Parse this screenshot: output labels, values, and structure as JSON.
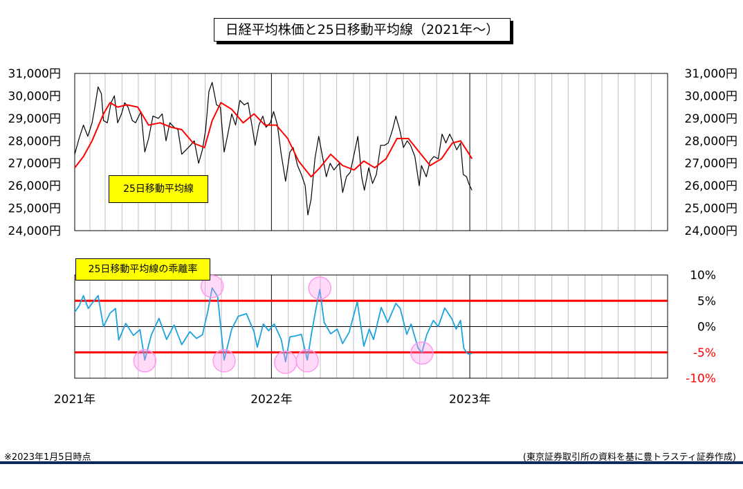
{
  "title": "日経平均株価と25日移動平均線（2021年～）",
  "labels": {
    "ma_tag": "25日移動平均線",
    "deviation_tag": "25日移動平均線の乖離率"
  },
  "footer": {
    "note": "※2023年1月5日時点",
    "source": "(東京証券取引所の資料を基に豊トラスティ証券作成)"
  },
  "colors": {
    "price_line": "#000000",
    "ma_line": "#ff0000",
    "deviation_line": "#1aa3e0",
    "threshold_line": "#ff0000",
    "label_fill": "#ffff00",
    "highlight_circle": "#ff99ee",
    "footer_rule": "#0d2a5e"
  },
  "chart_data": [
    {
      "type": "line",
      "yticks": [
        "31,000円",
        "30,000円",
        "29,000円",
        "28,000円",
        "27,000円",
        "26,000円",
        "25,000円",
        "24,000円"
      ],
      "ylim": [
        24000,
        31000
      ],
      "x_range": [
        "2021-01-04",
        "2023-12-31"
      ],
      "xlabels": [
        "2021年",
        "2022年",
        "2023年"
      ],
      "grid": "vertical",
      "series": [
        {
          "name": "",
          "kind": "daily_price",
          "points": [
            [
              "2021-01-04",
              27400
            ],
            [
              "2021-01-12",
              28100
            ],
            [
              "2021-01-20",
              28700
            ],
            [
              "2021-01-28",
              28200
            ],
            [
              "2021-02-05",
              28800
            ],
            [
              "2021-02-10",
              29500
            ],
            [
              "2021-02-16",
              30400
            ],
            [
              "2021-02-22",
              30100
            ],
            [
              "2021-02-26",
              28900
            ],
            [
              "2021-03-05",
              28800
            ],
            [
              "2021-03-12",
              29700
            ],
            [
              "2021-03-18",
              30000
            ],
            [
              "2021-03-24",
              28800
            ],
            [
              "2021-03-31",
              29200
            ],
            [
              "2021-04-06",
              29700
            ],
            [
              "2021-04-12",
              29500
            ],
            [
              "2021-04-20",
              28900
            ],
            [
              "2021-04-26",
              28800
            ],
            [
              "2021-05-06",
              29300
            ],
            [
              "2021-05-13",
              27500
            ],
            [
              "2021-05-20",
              28100
            ],
            [
              "2021-05-28",
              29100
            ],
            [
              "2021-06-07",
              29000
            ],
            [
              "2021-06-14",
              29200
            ],
            [
              "2021-06-21",
              28000
            ],
            [
              "2021-06-28",
              28800
            ],
            [
              "2021-07-06",
              28600
            ],
            [
              "2021-07-13",
              28500
            ],
            [
              "2021-07-20",
              27400
            ],
            [
              "2021-07-28",
              27600
            ],
            [
              "2021-08-05",
              27800
            ],
            [
              "2021-08-12",
              28000
            ],
            [
              "2021-08-20",
              27000
            ],
            [
              "2021-08-27",
              27600
            ],
            [
              "2021-09-02",
              28500
            ],
            [
              "2021-09-08",
              30200
            ],
            [
              "2021-09-14",
              30600
            ],
            [
              "2021-09-22",
              29600
            ],
            [
              "2021-09-29",
              29500
            ],
            [
              "2021-10-06",
              27500
            ],
            [
              "2021-10-12",
              28200
            ],
            [
              "2021-10-20",
              29200
            ],
            [
              "2021-10-27",
              28700
            ],
            [
              "2021-11-04",
              29800
            ],
            [
              "2021-11-12",
              29600
            ],
            [
              "2021-11-19",
              29700
            ],
            [
              "2021-11-26",
              28700
            ],
            [
              "2021-12-02",
              27800
            ],
            [
              "2021-12-09",
              28700
            ],
            [
              "2021-12-16",
              29100
            ],
            [
              "2021-12-22",
              28600
            ],
            [
              "2021-12-30",
              28800
            ],
            [
              "2022-01-05",
              29300
            ],
            [
              "2022-01-12",
              28700
            ],
            [
              "2022-01-19",
              27400
            ],
            [
              "2022-01-27",
              26200
            ],
            [
              "2022-02-04",
              27500
            ],
            [
              "2022-02-10",
              27700
            ],
            [
              "2022-02-18",
              26900
            ],
            [
              "2022-02-25",
              26500
            ],
            [
              "2022-03-04",
              26000
            ],
            [
              "2022-03-09",
              24700
            ],
            [
              "2022-03-15",
              25400
            ],
            [
              "2022-03-22",
              27200
            ],
            [
              "2022-03-29",
              28200
            ],
            [
              "2022-04-05",
              27300
            ],
            [
              "2022-04-12",
              26400
            ],
            [
              "2022-04-19",
              27000
            ],
            [
              "2022-04-26",
              26700
            ],
            [
              "2022-05-06",
              27000
            ],
            [
              "2022-05-12",
              25700
            ],
            [
              "2022-05-19",
              26400
            ],
            [
              "2022-05-26",
              26600
            ],
            [
              "2022-06-02",
              27400
            ],
            [
              "2022-06-09",
              28200
            ],
            [
              "2022-06-16",
              26400
            ],
            [
              "2022-06-21",
              25800
            ],
            [
              "2022-06-29",
              26800
            ],
            [
              "2022-07-06",
              26100
            ],
            [
              "2022-07-13",
              26500
            ],
            [
              "2022-07-21",
              27800
            ],
            [
              "2022-07-28",
              27800
            ],
            [
              "2022-08-04",
              27900
            ],
            [
              "2022-08-12",
              28500
            ],
            [
              "2022-08-18",
              29100
            ],
            [
              "2022-08-25",
              28500
            ],
            [
              "2022-09-01",
              27700
            ],
            [
              "2022-09-08",
              28000
            ],
            [
              "2022-09-14",
              27800
            ],
            [
              "2022-09-22",
              27300
            ],
            [
              "2022-09-30",
              26000
            ],
            [
              "2022-10-04",
              26900
            ],
            [
              "2022-10-13",
              26400
            ],
            [
              "2022-10-20",
              27100
            ],
            [
              "2022-10-27",
              27300
            ],
            [
              "2022-11-04",
              27200
            ],
            [
              "2022-11-11",
              28300
            ],
            [
              "2022-11-18",
              27900
            ],
            [
              "2022-11-25",
              28300
            ],
            [
              "2022-12-01",
              28000
            ],
            [
              "2022-12-08",
              27600
            ],
            [
              "2022-12-15",
              27900
            ],
            [
              "2022-12-20",
              26500
            ],
            [
              "2022-12-26",
              26400
            ],
            [
              "2022-12-30",
              26100
            ],
            [
              "2023-01-05",
              25800
            ]
          ]
        },
        {
          "name": "25日移動平均線",
          "kind": "moving_average",
          "points": [
            [
              "2021-01-04",
              26800
            ],
            [
              "2021-01-20",
              27300
            ],
            [
              "2021-02-05",
              28000
            ],
            [
              "2021-02-26",
              29200
            ],
            [
              "2021-03-10",
              29700
            ],
            [
              "2021-03-24",
              29500
            ],
            [
              "2021-04-10",
              29600
            ],
            [
              "2021-04-30",
              29500
            ],
            [
              "2021-05-20",
              28700
            ],
            [
              "2021-06-10",
              28800
            ],
            [
              "2021-07-01",
              28600
            ],
            [
              "2021-07-20",
              28500
            ],
            [
              "2021-08-10",
              27900
            ],
            [
              "2021-08-31",
              27700
            ],
            [
              "2021-09-14",
              28900
            ],
            [
              "2021-09-30",
              29700
            ],
            [
              "2021-10-20",
              29400
            ],
            [
              "2021-11-10",
              28800
            ],
            [
              "2021-11-30",
              29200
            ],
            [
              "2021-12-20",
              28700
            ],
            [
              "2022-01-10",
              28700
            ],
            [
              "2022-01-31",
              28100
            ],
            [
              "2022-02-20",
              27100
            ],
            [
              "2022-03-15",
              26400
            ],
            [
              "2022-03-31",
              26800
            ],
            [
              "2022-04-20",
              27400
            ],
            [
              "2022-05-12",
              26900
            ],
            [
              "2022-06-02",
              26700
            ],
            [
              "2022-06-20",
              27100
            ],
            [
              "2022-07-10",
              26800
            ],
            [
              "2022-07-31",
              27200
            ],
            [
              "2022-08-20",
              28100
            ],
            [
              "2022-09-10",
              28100
            ],
            [
              "2022-09-30",
              27500
            ],
            [
              "2022-10-20",
              26900
            ],
            [
              "2022-11-10",
              27200
            ],
            [
              "2022-11-30",
              27900
            ],
            [
              "2022-12-15",
              28000
            ],
            [
              "2022-12-31",
              27400
            ],
            [
              "2023-01-05",
              27200
            ]
          ]
        }
      ]
    },
    {
      "type": "line",
      "yticks": [
        "10%",
        "5%",
        "0%",
        "-5%",
        "-10%"
      ],
      "ylim": [
        -10,
        10
      ],
      "x_range": [
        "2021-01-04",
        "2023-12-31"
      ],
      "grid": "vertical",
      "reference_lines": [
        5,
        -5
      ],
      "series": [
        {
          "name": "",
          "kind": "deviation",
          "points": [
            [
              "2021-01-04",
              2.8
            ],
            [
              "2021-01-12",
              4.0
            ],
            [
              "2021-01-20",
              6.0
            ],
            [
              "2021-01-29",
              3.5
            ],
            [
              "2021-02-05",
              4.5
            ],
            [
              "2021-02-16",
              6.0
            ],
            [
              "2021-02-26",
              0.0
            ],
            [
              "2021-03-10",
              2.6
            ],
            [
              "2021-03-20",
              3.5
            ],
            [
              "2021-03-26",
              -2.6
            ],
            [
              "2021-04-08",
              0.6
            ],
            [
              "2021-04-22",
              -1.7
            ],
            [
              "2021-05-04",
              -0.6
            ],
            [
              "2021-05-13",
              -6.5
            ],
            [
              "2021-05-25",
              -1.6
            ],
            [
              "2021-06-08",
              1.6
            ],
            [
              "2021-06-22",
              -2.5
            ],
            [
              "2021-07-06",
              0.3
            ],
            [
              "2021-07-20",
              -3.5
            ],
            [
              "2021-08-04",
              -1.0
            ],
            [
              "2021-08-16",
              -2.3
            ],
            [
              "2021-08-27",
              -1.6
            ],
            [
              "2021-09-06",
              3.0
            ],
            [
              "2021-09-14",
              7.5
            ],
            [
              "2021-09-24",
              5.8
            ],
            [
              "2021-10-06",
              -6.5
            ],
            [
              "2021-10-20",
              -0.5
            ],
            [
              "2021-11-01",
              2.0
            ],
            [
              "2021-11-16",
              2.5
            ],
            [
              "2021-11-30",
              -1.0
            ],
            [
              "2021-12-06",
              -4.0
            ],
            [
              "2021-12-17",
              0.5
            ],
            [
              "2021-12-27",
              -0.8
            ],
            [
              "2022-01-06",
              0.5
            ],
            [
              "2022-01-19",
              -2.5
            ],
            [
              "2022-01-27",
              -6.8
            ],
            [
              "2022-02-04",
              -2.0
            ],
            [
              "2022-02-15",
              -1.8
            ],
            [
              "2022-02-25",
              -1.5
            ],
            [
              "2022-03-08",
              -6.5
            ],
            [
              "2022-03-16",
              -1.2
            ],
            [
              "2022-03-24",
              3.5
            ],
            [
              "2022-03-31",
              7.2
            ],
            [
              "2022-04-08",
              0.8
            ],
            [
              "2022-04-20",
              -1.4
            ],
            [
              "2022-05-02",
              -0.5
            ],
            [
              "2022-05-12",
              -3.3
            ],
            [
              "2022-05-24",
              -1.1
            ],
            [
              "2022-06-08",
              4.8
            ],
            [
              "2022-06-20",
              -3.8
            ],
            [
              "2022-06-30",
              -0.5
            ],
            [
              "2022-07-08",
              -2.5
            ],
            [
              "2022-07-22",
              3.7
            ],
            [
              "2022-08-03",
              0.8
            ],
            [
              "2022-08-18",
              4.5
            ],
            [
              "2022-08-26",
              3.5
            ],
            [
              "2022-09-07",
              -1.5
            ],
            [
              "2022-09-15",
              0.5
            ],
            [
              "2022-09-28",
              -4.2
            ],
            [
              "2022-10-05",
              -5.0
            ],
            [
              "2022-10-14",
              -1.5
            ],
            [
              "2022-10-26",
              1.2
            ],
            [
              "2022-11-04",
              0.0
            ],
            [
              "2022-11-16",
              3.6
            ],
            [
              "2022-11-29",
              1.5
            ],
            [
              "2022-12-07",
              -0.5
            ],
            [
              "2022-12-15",
              1.2
            ],
            [
              "2022-12-21",
              -4.2
            ],
            [
              "2022-12-26",
              -5.0
            ],
            [
              "2022-12-29",
              -5.3
            ],
            [
              "2023-01-05",
              -5.2
            ]
          ]
        }
      ],
      "highlighted_points": [
        "2021-05-13",
        "2021-09-14",
        "2021-10-06",
        "2022-01-27",
        "2022-03-08",
        "2022-03-31",
        "2022-10-05"
      ]
    }
  ]
}
